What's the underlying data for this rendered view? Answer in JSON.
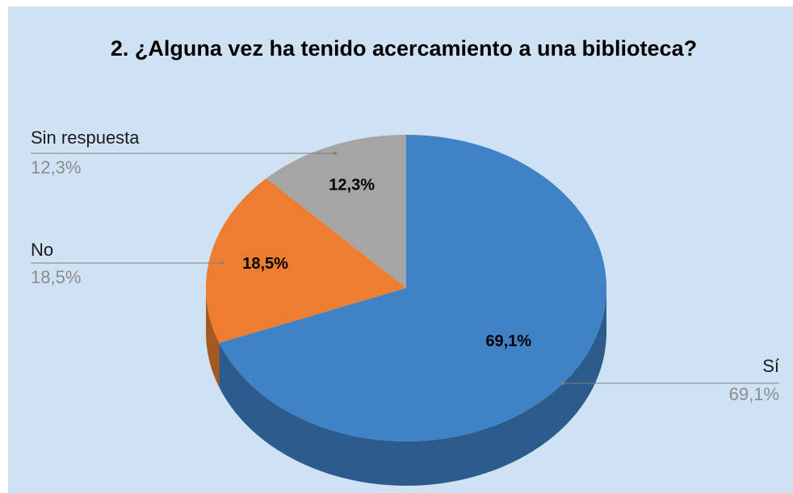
{
  "chart_data": {
    "type": "pie3d",
    "title": "2. ¿Alguna vez ha tenido acercamiento a una biblioteca?",
    "categories": [
      "Sí",
      "No",
      "Sin respuesta"
    ],
    "values": [
      69.1,
      18.5,
      12.3
    ],
    "value_labels": [
      "69,1%",
      "18,5%",
      "12,3%"
    ],
    "colors": [
      "#3f83c6",
      "#ed7d31",
      "#a5a5a5"
    ]
  }
}
